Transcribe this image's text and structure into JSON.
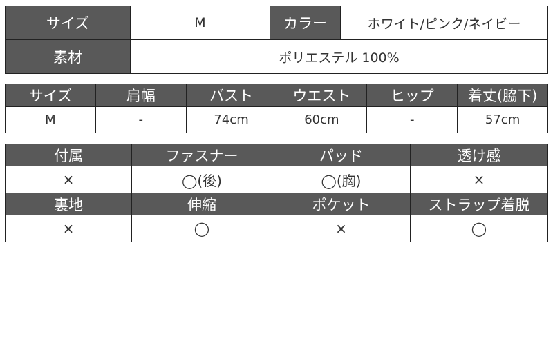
{
  "basic": {
    "size_label": "サイズ",
    "size_value": "M",
    "color_label": "カラー",
    "color_value": "ホワイト/ピンク/ネイビー",
    "material_label": "素材",
    "material_value": "ポリエステル 100%"
  },
  "measurements": {
    "headers": [
      "サイズ",
      "肩幅",
      "バスト",
      "ウエスト",
      "ヒップ",
      "着丈(脇下)"
    ],
    "row": [
      "M",
      "-",
      "74cm",
      "60cm",
      "-",
      "57cm"
    ]
  },
  "features": {
    "headers1": [
      "付属",
      "ファスナー",
      "パッド",
      "透け感"
    ],
    "row1": [
      "×",
      "◯(後)",
      "◯(胸)",
      "×"
    ],
    "headers2": [
      "裏地",
      "伸縮",
      "ポケット",
      "ストラップ着脱"
    ],
    "row2": [
      "×",
      "◯",
      "×",
      "◯"
    ],
    "header_color": "#595959"
  }
}
